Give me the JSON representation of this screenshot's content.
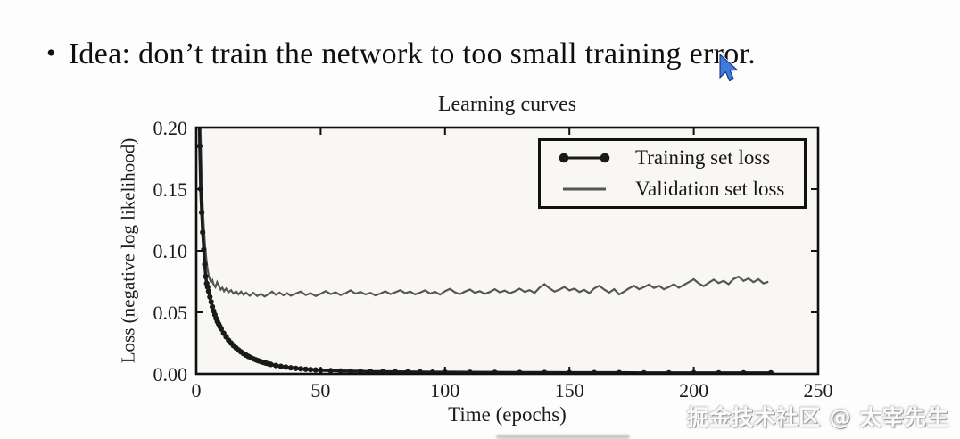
{
  "slide": {
    "bullet_marker": "•",
    "heading": "Idea: don’t train the network to too small training error."
  },
  "watermark": {
    "text": "掘金技术社区 @ 太宰先生"
  },
  "icons": {
    "cursor": "arrow-pointer-icon"
  },
  "colors": {
    "training": "#1a1a1a",
    "validation": "#555555",
    "frame": "#111111",
    "plot_bg": "#f8f7f4",
    "tick": "#111111"
  },
  "chart_data": {
    "type": "line",
    "title": "Learning curves",
    "xlabel": "Time (epochs)",
    "ylabel": "Loss (negative log likelihood)",
    "xlim": [
      0,
      250
    ],
    "ylim": [
      0.0,
      0.2
    ],
    "xticks": [
      0,
      50,
      100,
      150,
      200,
      250
    ],
    "yticks": [
      "0.00",
      "0.05",
      "0.10",
      "0.15",
      "0.20"
    ],
    "grid": false,
    "legend_position": "upper right",
    "series": [
      {
        "name": "Training set loss",
        "style": "line+markers",
        "color": "#1a1a1a",
        "points": [
          [
            0.7,
            0.32
          ],
          [
            1,
            0.24
          ],
          [
            1.4,
            0.185
          ],
          [
            1.8,
            0.15
          ],
          [
            2.2,
            0.131
          ],
          [
            2.6,
            0.115
          ],
          [
            3,
            0.101
          ],
          [
            3.4,
            0.089
          ],
          [
            3.8,
            0.079
          ],
          [
            4.2,
            0.0735
          ],
          [
            4.6,
            0.0705
          ],
          [
            5,
            0.067
          ],
          [
            5.5,
            0.0625
          ],
          [
            6,
            0.0585
          ],
          [
            6.5,
            0.0545
          ],
          [
            7,
            0.051
          ],
          [
            7.5,
            0.048
          ],
          [
            8,
            0.045
          ],
          [
            8.5,
            0.0425
          ],
          [
            9,
            0.0405
          ],
          [
            9.5,
            0.0385
          ],
          [
            10,
            0.0365
          ],
          [
            11,
            0.033
          ],
          [
            12,
            0.03
          ],
          [
            13,
            0.0273
          ],
          [
            14,
            0.025
          ],
          [
            15,
            0.0229
          ],
          [
            16,
            0.021
          ],
          [
            17,
            0.0193
          ],
          [
            18,
            0.0178
          ],
          [
            19,
            0.0164
          ],
          [
            20,
            0.0152
          ],
          [
            21,
            0.0141
          ],
          [
            22,
            0.0131
          ],
          [
            23,
            0.0122
          ],
          [
            24,
            0.0114
          ],
          [
            25,
            0.0106
          ],
          [
            26,
            0.0099
          ],
          [
            27,
            0.0093
          ],
          [
            28,
            0.0087
          ],
          [
            29,
            0.0082
          ],
          [
            30,
            0.0077
          ],
          [
            32,
            0.0068
          ],
          [
            34,
            0.0061
          ],
          [
            36,
            0.0055
          ],
          [
            38,
            0.0049
          ],
          [
            40,
            0.0045
          ],
          [
            42,
            0.0041
          ],
          [
            44,
            0.0038
          ],
          [
            46,
            0.0035
          ],
          [
            48,
            0.0032
          ],
          [
            50,
            0.003
          ],
          [
            54,
            0.0027
          ],
          [
            58,
            0.0024
          ],
          [
            62,
            0.0022
          ],
          [
            66,
            0.0021
          ],
          [
            70,
            0.0019
          ],
          [
            75,
            0.0018
          ],
          [
            80,
            0.0017
          ],
          [
            85,
            0.0016
          ],
          [
            90,
            0.0015
          ],
          [
            95,
            0.0014
          ],
          [
            100,
            0.0014
          ],
          [
            110,
            0.0013
          ],
          [
            120,
            0.0012
          ],
          [
            130,
            0.0011
          ],
          [
            140,
            0.0011
          ],
          [
            150,
            0.001
          ],
          [
            160,
            0.001
          ],
          [
            170,
            0.001
          ],
          [
            180,
            0.0009
          ],
          [
            190,
            0.0009
          ],
          [
            200,
            0.0009
          ],
          [
            210,
            0.0009
          ],
          [
            220,
            0.0009
          ],
          [
            231,
            0.0009
          ]
        ]
      },
      {
        "name": "Validation set loss",
        "style": "line",
        "color": "#555555",
        "points": [
          [
            0.9,
            0.32
          ],
          [
            1.3,
            0.25
          ],
          [
            1.7,
            0.2
          ],
          [
            2.1,
            0.165
          ],
          [
            2.5,
            0.14
          ],
          [
            3,
            0.12
          ],
          [
            3.5,
            0.105
          ],
          [
            4,
            0.094
          ],
          [
            4.5,
            0.086
          ],
          [
            5,
            0.08
          ],
          [
            5.5,
            0.0765
          ],
          [
            6,
            0.0745
          ],
          [
            6.5,
            0.076
          ],
          [
            7,
            0.0725
          ],
          [
            7.7,
            0.0705
          ],
          [
            8.4,
            0.0745
          ],
          [
            9.1,
            0.0715
          ],
          [
            9.8,
            0.0685
          ],
          [
            10.5,
            0.07
          ],
          [
            11.2,
            0.0672
          ],
          [
            12,
            0.0692
          ],
          [
            13,
            0.0662
          ],
          [
            14,
            0.068
          ],
          [
            15,
            0.0652
          ],
          [
            16,
            0.067
          ],
          [
            17,
            0.0646
          ],
          [
            18,
            0.0668
          ],
          [
            19,
            0.0642
          ],
          [
            20,
            0.066
          ],
          [
            21.5,
            0.0635
          ],
          [
            23,
            0.0658
          ],
          [
            24.5,
            0.0632
          ],
          [
            26,
            0.065
          ],
          [
            27.5,
            0.0628
          ],
          [
            29,
            0.0648
          ],
          [
            30.5,
            0.0668
          ],
          [
            32,
            0.0642
          ],
          [
            33.5,
            0.066
          ],
          [
            35,
            0.0638
          ],
          [
            36.5,
            0.0655
          ],
          [
            38,
            0.0635
          ],
          [
            40,
            0.0652
          ],
          [
            42,
            0.0668
          ],
          [
            44,
            0.064
          ],
          [
            46,
            0.0655
          ],
          [
            48,
            0.0632
          ],
          [
            50,
            0.065
          ],
          [
            52,
            0.0672
          ],
          [
            54,
            0.0648
          ],
          [
            56,
            0.0662
          ],
          [
            58,
            0.064
          ],
          [
            60,
            0.0655
          ],
          [
            62,
            0.0678
          ],
          [
            64,
            0.0652
          ],
          [
            66,
            0.0665
          ],
          [
            68,
            0.0645
          ],
          [
            70,
            0.0658
          ],
          [
            72,
            0.0638
          ],
          [
            74,
            0.0652
          ],
          [
            76,
            0.067
          ],
          [
            78,
            0.0648
          ],
          [
            80,
            0.0662
          ],
          [
            82,
            0.068
          ],
          [
            84,
            0.0655
          ],
          [
            86,
            0.0668
          ],
          [
            88,
            0.0646
          ],
          [
            90,
            0.066
          ],
          [
            92,
            0.0678
          ],
          [
            94,
            0.0652
          ],
          [
            96,
            0.0666
          ],
          [
            98,
            0.0644
          ],
          [
            100,
            0.0672
          ],
          [
            102,
            0.069
          ],
          [
            104,
            0.0662
          ],
          [
            106,
            0.0648
          ],
          [
            108,
            0.0668
          ],
          [
            110,
            0.0685
          ],
          [
            112,
            0.0658
          ],
          [
            114,
            0.0672
          ],
          [
            116,
            0.065
          ],
          [
            118,
            0.0665
          ],
          [
            120,
            0.0688
          ],
          [
            122,
            0.0662
          ],
          [
            124,
            0.0676
          ],
          [
            126,
            0.0654
          ],
          [
            128,
            0.067
          ],
          [
            130,
            0.0692
          ],
          [
            132,
            0.0666
          ],
          [
            134,
            0.068
          ],
          [
            136,
            0.0658
          ],
          [
            138,
            0.07
          ],
          [
            140,
            0.0728
          ],
          [
            142,
            0.0695
          ],
          [
            144,
            0.0668
          ],
          [
            146,
            0.0685
          ],
          [
            148,
            0.0705
          ],
          [
            150,
            0.0678
          ],
          [
            152,
            0.0692
          ],
          [
            154,
            0.0665
          ],
          [
            156,
            0.0682
          ],
          [
            158,
            0.0655
          ],
          [
            160,
            0.0695
          ],
          [
            162,
            0.0715
          ],
          [
            164,
            0.0685
          ],
          [
            166,
            0.066
          ],
          [
            168,
            0.0688
          ],
          [
            170,
            0.0645
          ],
          [
            172,
            0.0668
          ],
          [
            174,
            0.0695
          ],
          [
            176,
            0.0715
          ],
          [
            178,
            0.0688
          ],
          [
            180,
            0.0705
          ],
          [
            182,
            0.0725
          ],
          [
            184,
            0.0698
          ],
          [
            186,
            0.0715
          ],
          [
            188,
            0.0688
          ],
          [
            190,
            0.0705
          ],
          [
            192,
            0.0728
          ],
          [
            194,
            0.07
          ],
          [
            196,
            0.0722
          ],
          [
            198,
            0.0745
          ],
          [
            200,
            0.0768
          ],
          [
            202,
            0.0735
          ],
          [
            204,
            0.0712
          ],
          [
            206,
            0.074
          ],
          [
            208,
            0.0765
          ],
          [
            210,
            0.0738
          ],
          [
            212,
            0.0755
          ],
          [
            214,
            0.0728
          ],
          [
            216,
            0.077
          ],
          [
            218,
            0.079
          ],
          [
            220,
            0.0755
          ],
          [
            222,
            0.0775
          ],
          [
            224,
            0.0745
          ],
          [
            226,
            0.0768
          ],
          [
            228,
            0.0735
          ],
          [
            230,
            0.0748
          ]
        ]
      }
    ]
  }
}
